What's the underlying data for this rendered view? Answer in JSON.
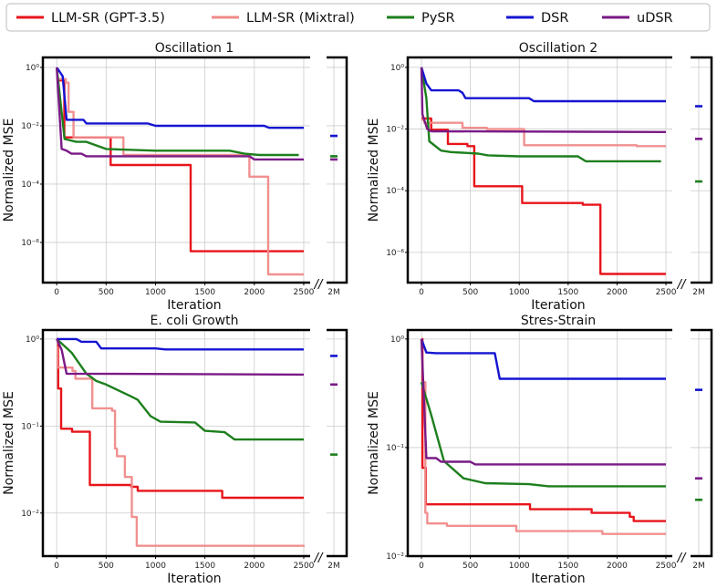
{
  "legend": {
    "placement": "top",
    "entries": [
      {
        "name": "LLM-SR (GPT-3.5)",
        "color": "#e8141b"
      },
      {
        "name": "LLM-SR (Mixtral)",
        "color": "#f08a8a"
      },
      {
        "name": "PySR",
        "color": "#1d7f1d"
      },
      {
        "name": "DSR",
        "color": "#1414d2"
      },
      {
        "name": "uDSR",
        "color": "#7a1a86"
      }
    ]
  },
  "chart_data": [
    {
      "type": "line",
      "title": "Oscillation 1",
      "xlabel": "Iteration",
      "ylabel": "Normalized MSE",
      "yscale": "log",
      "xlim": [
        -140,
        2565
      ],
      "ylim": [
        4.2e-08,
        2.2
      ],
      "xticks": [
        "0",
        "500",
        "1000",
        "1500",
        "2000",
        "2500"
      ],
      "xtick_values": [
        0,
        500,
        1000,
        1500,
        2000,
        2500
      ],
      "break_tick": "2M",
      "break_mark": "//",
      "yticks": [
        "10⁰",
        "10⁻²",
        "10⁻⁴",
        "10⁻⁶"
      ],
      "ytick_values": [
        1,
        0.01,
        0.0001,
        1e-06
      ],
      "grid": true,
      "series": [
        {
          "name": "LLM-SR (GPT-3.5)",
          "style": "steps",
          "points": [
            [
              0,
              0.36
            ],
            [
              77,
              0.004
            ],
            [
              546,
              0.00045
            ],
            [
              1356,
              5e-07
            ],
            [
              2500,
              5e-07
            ]
          ]
        },
        {
          "name": "LLM-SR (Mixtral)",
          "style": "steps",
          "points": [
            [
              0,
              0.4
            ],
            [
              92,
              0.3
            ],
            [
              120,
              0.03
            ],
            [
              170,
              0.004
            ],
            [
              675,
              0.001
            ],
            [
              1950,
              0.00018
            ],
            [
              2140,
              8e-08
            ],
            [
              2500,
              8e-08
            ]
          ]
        },
        {
          "name": "PySR",
          "style": "line",
          "points": [
            [
              0,
              1
            ],
            [
              80,
              0.0035
            ],
            [
              200,
              0.0028
            ],
            [
              300,
              0.0028
            ],
            [
              500,
              0.0016
            ],
            [
              1000,
              0.0014
            ],
            [
              1750,
              0.0014
            ],
            [
              1900,
              0.0011
            ],
            [
              2050,
              0.001
            ],
            [
              2450,
              0.001
            ]
          ],
          "at_2M": 0.0009
        },
        {
          "name": "DSR",
          "style": "line",
          "points": [
            [
              0,
              1
            ],
            [
              60,
              0.5
            ],
            [
              100,
              0.016
            ],
            [
              270,
              0.016
            ],
            [
              300,
              0.012
            ],
            [
              920,
              0.012
            ],
            [
              1000,
              0.01
            ],
            [
              2100,
              0.01
            ],
            [
              2150,
              0.0085
            ],
            [
              2500,
              0.0085
            ]
          ],
          "at_2M": 0.0045
        },
        {
          "name": "uDSR",
          "style": "line",
          "points": [
            [
              0,
              1
            ],
            [
              50,
              0.0016
            ],
            [
              100,
              0.0014
            ],
            [
              150,
              0.0011
            ],
            [
              250,
              0.0011
            ],
            [
              300,
              0.0009
            ],
            [
              1950,
              0.0009
            ],
            [
              2000,
              0.0007
            ],
            [
              2500,
              0.0007
            ]
          ],
          "at_2M": 0.0007
        }
      ]
    },
    {
      "type": "line",
      "title": "Oscillation 2",
      "xlabel": "Iteration",
      "ylabel": "Normalized MSE",
      "yscale": "log",
      "xlim": [
        -140,
        2565
      ],
      "ylim": [
        1.05e-07,
        2.1
      ],
      "xticks": [
        "0",
        "500",
        "1000",
        "1500",
        "2000",
        "2500"
      ],
      "xtick_values": [
        0,
        500,
        1000,
        1500,
        2000,
        2500
      ],
      "break_tick": "2M",
      "break_mark": "//",
      "yticks": [
        "10⁰",
        "10⁻²",
        "10⁻⁴",
        "10⁻⁶"
      ],
      "ytick_values": [
        1,
        0.01,
        0.0001,
        1e-06
      ],
      "grid": true,
      "series": [
        {
          "name": "LLM-SR (GPT-3.5)",
          "style": "steps",
          "points": [
            [
              0,
              0.022
            ],
            [
              100,
              0.0095
            ],
            [
              270,
              0.0033
            ],
            [
              470,
              0.0028
            ],
            [
              540,
              0.00014
            ],
            [
              1030,
              4e-05
            ],
            [
              1650,
              3.5e-05
            ],
            [
              1830,
              2e-07
            ],
            [
              2500,
              2e-07
            ]
          ]
        },
        {
          "name": "LLM-SR (Mixtral)",
          "style": "steps",
          "points": [
            [
              0,
              0.02
            ],
            [
              30,
              0.016
            ],
            [
              420,
              0.011
            ],
            [
              670,
              0.01
            ],
            [
              1050,
              0.003
            ],
            [
              2200,
              0.0028
            ],
            [
              2500,
              0.0028
            ]
          ]
        },
        {
          "name": "PySR",
          "style": "line",
          "points": [
            [
              0,
              1
            ],
            [
              50,
              0.1
            ],
            [
              80,
              0.004
            ],
            [
              200,
              0.002
            ],
            [
              300,
              0.0018
            ],
            [
              580,
              0.0016
            ],
            [
              680,
              0.0014
            ],
            [
              1000,
              0.0013
            ],
            [
              1600,
              0.0013
            ],
            [
              1680,
              0.0009
            ],
            [
              2450,
              0.0009
            ]
          ],
          "at_2M": 0.0002
        },
        {
          "name": "DSR",
          "style": "line",
          "points": [
            [
              0,
              1
            ],
            [
              50,
              0.3
            ],
            [
              100,
              0.18
            ],
            [
              380,
              0.18
            ],
            [
              420,
              0.15
            ],
            [
              450,
              0.1
            ],
            [
              1100,
              0.1
            ],
            [
              1150,
              0.08
            ],
            [
              2500,
              0.08
            ]
          ],
          "at_2M": 0.055
        },
        {
          "name": "uDSR",
          "style": "line",
          "points": [
            [
              0,
              1
            ],
            [
              10,
              0.03
            ],
            [
              60,
              0.01
            ],
            [
              100,
              0.0085
            ],
            [
              2500,
              0.008
            ]
          ],
          "at_2M": 0.0048
        }
      ]
    },
    {
      "type": "line",
      "title": "E. coli Growth",
      "xlabel": "Iteration",
      "ylabel": "Normalized MSE",
      "yscale": "log",
      "xlim": [
        -140,
        2565
      ],
      "ylim": [
        0.0032,
        1.27
      ],
      "xticks": [
        "0",
        "500",
        "1000",
        "1500",
        "2000",
        "2500"
      ],
      "xtick_values": [
        0,
        500,
        1000,
        1500,
        2000,
        2500
      ],
      "break_tick": "2M",
      "break_mark": "//",
      "yticks": [
        "10⁰",
        "10⁻¹",
        "10⁻²"
      ],
      "ytick_values": [
        1,
        0.1,
        0.01
      ],
      "grid": true,
      "series": [
        {
          "name": "LLM-SR (GPT-3.5)",
          "style": "steps",
          "points": [
            [
              0,
              1
            ],
            [
              15,
              0.27
            ],
            [
              45,
              0.093
            ],
            [
              155,
              0.086
            ],
            [
              335,
              0.021
            ],
            [
              755,
              0.02
            ],
            [
              820,
              0.018
            ],
            [
              1675,
              0.015
            ],
            [
              2500,
              0.015
            ]
          ]
        },
        {
          "name": "LLM-SR (Mixtral)",
          "style": "steps",
          "points": [
            [
              0,
              0.8
            ],
            [
              10,
              0.47
            ],
            [
              160,
              0.43
            ],
            [
              190,
              0.35
            ],
            [
              360,
              0.16
            ],
            [
              560,
              0.15
            ],
            [
              590,
              0.055
            ],
            [
              610,
              0.045
            ],
            [
              690,
              0.026
            ],
            [
              760,
              0.009
            ],
            [
              810,
              0.0042
            ],
            [
              2500,
              0.0041
            ]
          ]
        },
        {
          "name": "PySR",
          "style": "line",
          "points": [
            [
              0,
              1
            ],
            [
              150,
              0.7
            ],
            [
              300,
              0.4
            ],
            [
              400,
              0.33
            ],
            [
              500,
              0.3
            ],
            [
              750,
              0.22
            ],
            [
              820,
              0.2
            ],
            [
              950,
              0.13
            ],
            [
              1050,
              0.112
            ],
            [
              1400,
              0.11
            ],
            [
              1500,
              0.088
            ],
            [
              1700,
              0.085
            ],
            [
              1800,
              0.07
            ],
            [
              2500,
              0.07
            ]
          ],
          "at_2M": 0.047
        },
        {
          "name": "DSR",
          "style": "line",
          "points": [
            [
              0,
              1
            ],
            [
              200,
              1
            ],
            [
              250,
              0.93
            ],
            [
              400,
              0.93
            ],
            [
              450,
              0.78
            ],
            [
              1000,
              0.78
            ],
            [
              1100,
              0.76
            ],
            [
              2500,
              0.76
            ]
          ],
          "at_2M": 0.64
        },
        {
          "name": "uDSR",
          "style": "line",
          "points": [
            [
              0,
              1
            ],
            [
              50,
              0.75
            ],
            [
              100,
              0.4
            ],
            [
              2500,
              0.39
            ]
          ],
          "at_2M": 0.3
        }
      ]
    },
    {
      "type": "line",
      "title": "Stres-Strain",
      "xlabel": "Iteration",
      "ylabel": "Normalized MSE",
      "yscale": "log",
      "xlim": [
        -140,
        2565
      ],
      "ylim": [
        0.01,
        1.21
      ],
      "xticks": [
        "0",
        "500",
        "1000",
        "1500",
        "2000",
        "2500"
      ],
      "xtick_values": [
        0,
        500,
        1000,
        1500,
        2000,
        2500
      ],
      "break_tick": "2M",
      "break_mark": "//",
      "yticks": [
        "10⁰",
        "10⁻¹",
        "10⁻²"
      ],
      "ytick_values": [
        1,
        0.1,
        0.01
      ],
      "grid": true,
      "series": [
        {
          "name": "LLM-SR (GPT-3.5)",
          "style": "steps",
          "points": [
            [
              0,
              1
            ],
            [
              10,
              0.065
            ],
            [
              45,
              0.03
            ],
            [
              1110,
              0.027
            ],
            [
              1740,
              0.025
            ],
            [
              2130,
              0.023
            ],
            [
              2170,
              0.021
            ],
            [
              2500,
              0.021
            ]
          ]
        },
        {
          "name": "LLM-SR (Mixtral)",
          "style": "steps",
          "points": [
            [
              0,
              0.4
            ],
            [
              40,
              0.025
            ],
            [
              60,
              0.02
            ],
            [
              260,
              0.019
            ],
            [
              970,
              0.017
            ],
            [
              1850,
              0.016
            ],
            [
              2500,
              0.016
            ]
          ]
        },
        {
          "name": "PySR",
          "style": "line",
          "points": [
            [
              0,
              0.4
            ],
            [
              100,
              0.2
            ],
            [
              230,
              0.075
            ],
            [
              430,
              0.052
            ],
            [
              650,
              0.047
            ],
            [
              1100,
              0.046
            ],
            [
              1300,
              0.044
            ],
            [
              2500,
              0.044
            ]
          ],
          "at_2M": 0.033
        },
        {
          "name": "DSR",
          "style": "line",
          "points": [
            [
              0,
              1
            ],
            [
              50,
              0.75
            ],
            [
              150,
              0.74
            ],
            [
              750,
              0.74
            ],
            [
              800,
              0.43
            ],
            [
              2500,
              0.43
            ]
          ],
          "at_2M": 0.34
        },
        {
          "name": "uDSR",
          "style": "line",
          "points": [
            [
              0,
              1
            ],
            [
              50,
              0.08
            ],
            [
              150,
              0.08
            ],
            [
              200,
              0.074
            ],
            [
              500,
              0.074
            ],
            [
              550,
              0.07
            ],
            [
              2500,
              0.07
            ]
          ],
          "at_2M": 0.052
        }
      ]
    }
  ]
}
